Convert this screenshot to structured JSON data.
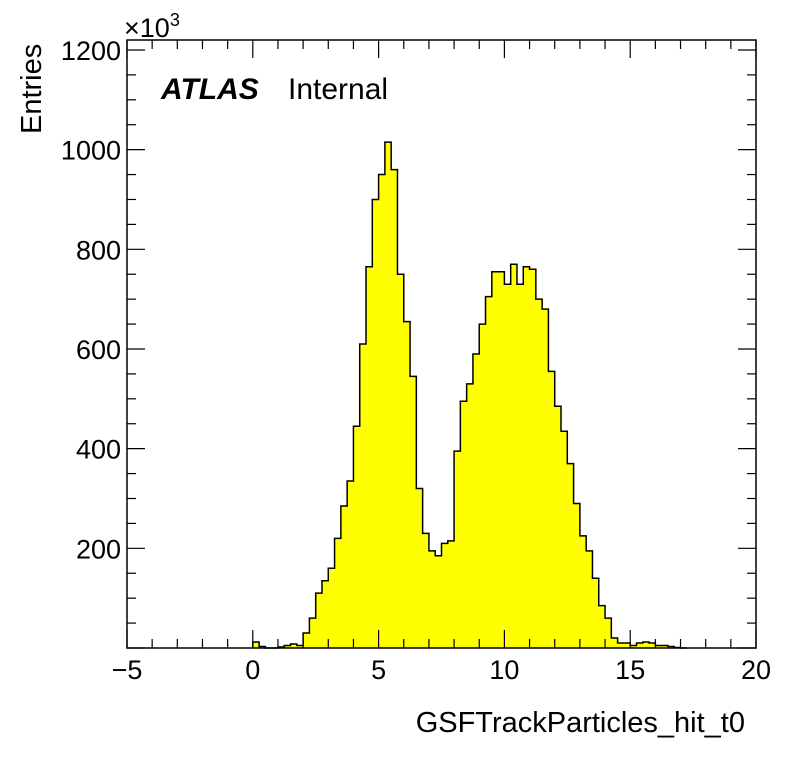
{
  "chart_data": {
    "type": "bar",
    "histogram": true,
    "xlabel": "GSFTrackParticles_hit_t0",
    "ylabel": "Entries",
    "y_multiplier_label": "×10",
    "y_multiplier_exponent": "3",
    "xlim": [
      -5,
      20
    ],
    "ylim": [
      0,
      1220
    ],
    "x_ticks": [
      -5,
      0,
      5,
      10,
      15,
      20
    ],
    "x_tick_labels": [
      "−5",
      "0",
      "5",
      "10",
      "15",
      "20"
    ],
    "y_ticks": [
      200,
      400,
      600,
      800,
      1000,
      1200
    ],
    "y_tick_labels": [
      "200",
      "400",
      "600",
      "800",
      "1000",
      "1200"
    ],
    "annotation": {
      "experiment": "ATLAS",
      "status": "Internal"
    },
    "fill_color": "#ffff00",
    "line_color": "#000000",
    "bin_width": 0.25,
    "bin_low_edges": [
      0.0,
      0.25,
      0.5,
      0.75,
      1.0,
      1.25,
      1.5,
      1.75,
      2.0,
      2.25,
      2.5,
      2.75,
      3.0,
      3.25,
      3.5,
      3.75,
      4.0,
      4.25,
      4.5,
      4.75,
      5.0,
      5.25,
      5.5,
      5.75,
      6.0,
      6.25,
      6.5,
      6.75,
      7.0,
      7.25,
      7.5,
      7.75,
      8.0,
      8.25,
      8.5,
      8.75,
      9.0,
      9.25,
      9.5,
      9.75,
      10.0,
      10.25,
      10.5,
      10.75,
      11.0,
      11.25,
      11.5,
      11.75,
      12.0,
      12.25,
      12.5,
      12.75,
      13.0,
      13.25,
      13.5,
      13.75,
      14.0,
      14.25,
      14.5,
      14.75,
      15.0,
      15.25,
      15.5,
      15.75,
      16.0,
      16.25,
      16.5,
      16.75,
      17.0
    ],
    "values": [
      12,
      3,
      0,
      0,
      2,
      5,
      8,
      5,
      30,
      60,
      110,
      135,
      160,
      220,
      285,
      335,
      445,
      610,
      765,
      900,
      950,
      1015,
      960,
      750,
      655,
      545,
      320,
      230,
      195,
      185,
      210,
      215,
      395,
      495,
      530,
      590,
      650,
      705,
      755,
      755,
      730,
      770,
      730,
      765,
      760,
      700,
      680,
      555,
      485,
      435,
      370,
      290,
      225,
      195,
      140,
      85,
      60,
      20,
      10,
      10,
      5,
      10,
      12,
      10,
      5,
      5,
      3,
      1,
      0
    ]
  }
}
